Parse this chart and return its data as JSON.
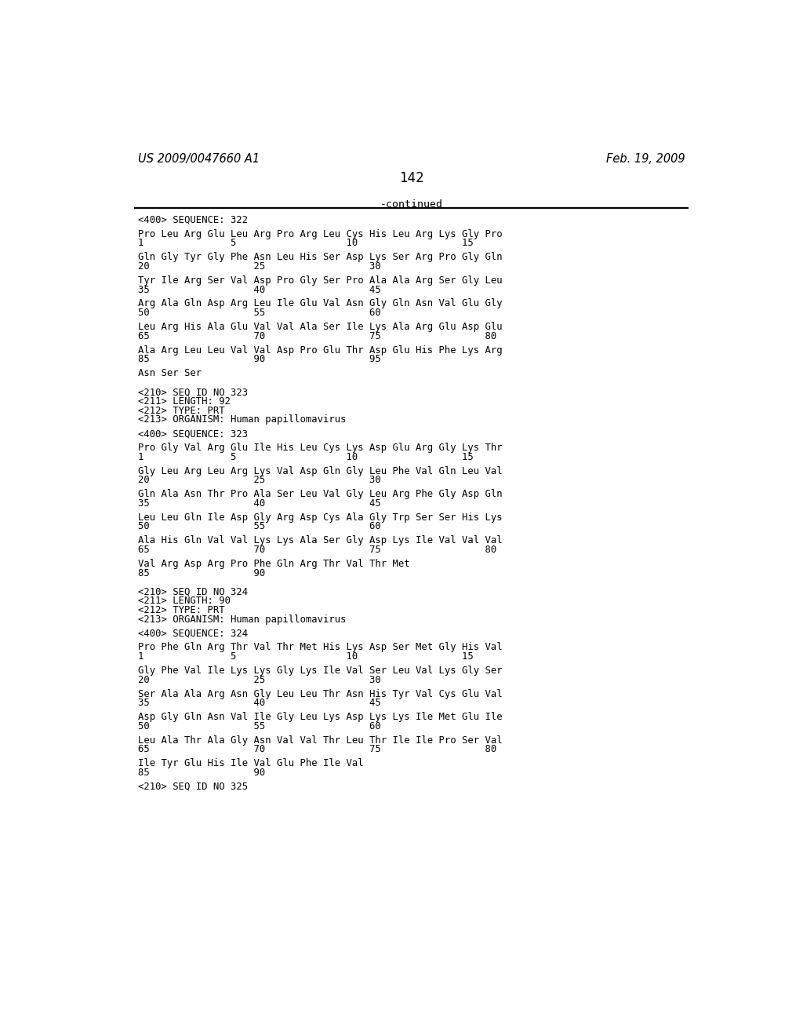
{
  "header_left": "US 2009/0047660 A1",
  "header_right": "Feb. 19, 2009",
  "page_number": "142",
  "continued_text": "-continued",
  "background_color": "#ffffff",
  "text_color": "#000000",
  "content": [
    {
      "text": "<400> SEQUENCE: 322",
      "type": "normal"
    },
    {
      "text": "",
      "type": "blank"
    },
    {
      "text": "Pro Leu Arg Glu Leu Arg Pro Arg Leu Cys His Leu Arg Lys Gly Pro",
      "type": "normal"
    },
    {
      "text": "1               5                   10                  15",
      "type": "normal"
    },
    {
      "text": "",
      "type": "blank"
    },
    {
      "text": "Gln Gly Tyr Gly Phe Asn Leu His Ser Asp Lys Ser Arg Pro Gly Gln",
      "type": "normal"
    },
    {
      "text": "20                  25                  30",
      "type": "normal"
    },
    {
      "text": "",
      "type": "blank"
    },
    {
      "text": "Tyr Ile Arg Ser Val Asp Pro Gly Ser Pro Ala Ala Arg Ser Gly Leu",
      "type": "normal"
    },
    {
      "text": "35                  40                  45",
      "type": "normal"
    },
    {
      "text": "",
      "type": "blank"
    },
    {
      "text": "Arg Ala Gln Asp Arg Leu Ile Glu Val Asn Gly Gln Asn Val Glu Gly",
      "type": "normal"
    },
    {
      "text": "50                  55                  60",
      "type": "normal"
    },
    {
      "text": "",
      "type": "blank"
    },
    {
      "text": "Leu Arg His Ala Glu Val Val Ala Ser Ile Lys Ala Arg Glu Asp Glu",
      "type": "normal"
    },
    {
      "text": "65                  70                  75                  80",
      "type": "normal"
    },
    {
      "text": "",
      "type": "blank"
    },
    {
      "text": "Ala Arg Leu Leu Val Val Asp Pro Glu Thr Asp Glu His Phe Lys Arg",
      "type": "normal"
    },
    {
      "text": "85                  90                  95",
      "type": "normal"
    },
    {
      "text": "",
      "type": "blank"
    },
    {
      "text": "Asn Ser Ser",
      "type": "normal"
    },
    {
      "text": "",
      "type": "blank"
    },
    {
      "text": "",
      "type": "blank"
    },
    {
      "text": "<210> SEQ ID NO 323",
      "type": "normal"
    },
    {
      "text": "<211> LENGTH: 92",
      "type": "normal"
    },
    {
      "text": "<212> TYPE: PRT",
      "type": "normal"
    },
    {
      "text": "<213> ORGANISM: Human papillomavirus",
      "type": "normal"
    },
    {
      "text": "",
      "type": "blank"
    },
    {
      "text": "<400> SEQUENCE: 323",
      "type": "normal"
    },
    {
      "text": "",
      "type": "blank"
    },
    {
      "text": "Pro Gly Val Arg Glu Ile His Leu Cys Lys Asp Glu Arg Gly Lys Thr",
      "type": "normal"
    },
    {
      "text": "1               5                   10                  15",
      "type": "normal"
    },
    {
      "text": "",
      "type": "blank"
    },
    {
      "text": "Gly Leu Arg Leu Arg Lys Val Asp Gln Gly Leu Phe Val Gln Leu Val",
      "type": "normal"
    },
    {
      "text": "20                  25                  30",
      "type": "normal"
    },
    {
      "text": "",
      "type": "blank"
    },
    {
      "text": "Gln Ala Asn Thr Pro Ala Ser Leu Val Gly Leu Arg Phe Gly Asp Gln",
      "type": "normal"
    },
    {
      "text": "35                  40                  45",
      "type": "normal"
    },
    {
      "text": "",
      "type": "blank"
    },
    {
      "text": "Leu Leu Gln Ile Asp Gly Arg Asp Cys Ala Gly Trp Ser Ser His Lys",
      "type": "normal"
    },
    {
      "text": "50                  55                  60",
      "type": "normal"
    },
    {
      "text": "",
      "type": "blank"
    },
    {
      "text": "Ala His Gln Val Val Lys Lys Ala Ser Gly Asp Lys Ile Val Val Val",
      "type": "normal"
    },
    {
      "text": "65                  70                  75                  80",
      "type": "normal"
    },
    {
      "text": "",
      "type": "blank"
    },
    {
      "text": "Val Arg Asp Arg Pro Phe Gln Arg Thr Val Thr Met",
      "type": "normal"
    },
    {
      "text": "85                  90",
      "type": "normal"
    },
    {
      "text": "",
      "type": "blank"
    },
    {
      "text": "",
      "type": "blank"
    },
    {
      "text": "<210> SEQ ID NO 324",
      "type": "normal"
    },
    {
      "text": "<211> LENGTH: 90",
      "type": "normal"
    },
    {
      "text": "<212> TYPE: PRT",
      "type": "normal"
    },
    {
      "text": "<213> ORGANISM: Human papillomavirus",
      "type": "normal"
    },
    {
      "text": "",
      "type": "blank"
    },
    {
      "text": "<400> SEQUENCE: 324",
      "type": "normal"
    },
    {
      "text": "",
      "type": "blank"
    },
    {
      "text": "Pro Phe Gln Arg Thr Val Thr Met His Lys Asp Ser Met Gly His Val",
      "type": "normal"
    },
    {
      "text": "1               5                   10                  15",
      "type": "normal"
    },
    {
      "text": "",
      "type": "blank"
    },
    {
      "text": "Gly Phe Val Ile Lys Lys Gly Lys Ile Val Ser Leu Val Lys Gly Ser",
      "type": "normal"
    },
    {
      "text": "20                  25                  30",
      "type": "normal"
    },
    {
      "text": "",
      "type": "blank"
    },
    {
      "text": "Ser Ala Ala Arg Asn Gly Leu Leu Thr Asn His Tyr Val Cys Glu Val",
      "type": "normal"
    },
    {
      "text": "35                  40                  45",
      "type": "normal"
    },
    {
      "text": "",
      "type": "blank"
    },
    {
      "text": "Asp Gly Gln Asn Val Ile Gly Leu Lys Asp Lys Lys Ile Met Glu Ile",
      "type": "normal"
    },
    {
      "text": "50                  55                  60",
      "type": "normal"
    },
    {
      "text": "",
      "type": "blank"
    },
    {
      "text": "Leu Ala Thr Ala Gly Asn Val Val Thr Leu Thr Ile Ile Pro Ser Val",
      "type": "normal"
    },
    {
      "text": "65                  70                  75                  80",
      "type": "normal"
    },
    {
      "text": "",
      "type": "blank"
    },
    {
      "text": "Ile Tyr Glu His Ile Val Glu Phe Ile Val",
      "type": "normal"
    },
    {
      "text": "85                  90",
      "type": "normal"
    },
    {
      "text": "",
      "type": "blank"
    },
    {
      "text": "<210> SEQ ID NO 325",
      "type": "normal"
    }
  ]
}
